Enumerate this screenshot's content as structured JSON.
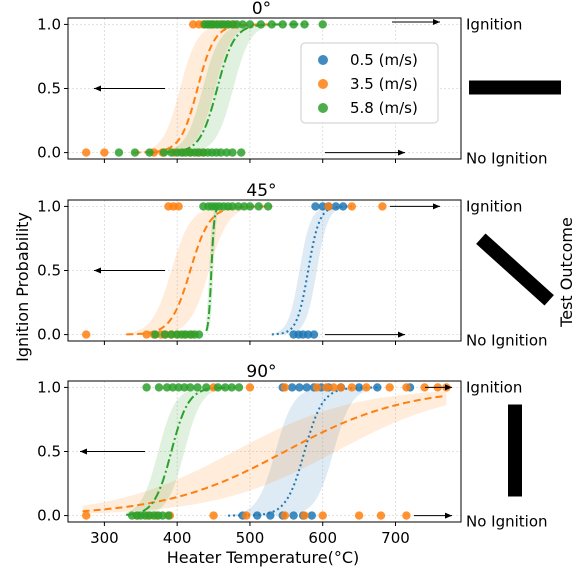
{
  "figure": {
    "ylabel": "Ignition Probability",
    "xlabel": "Heater Temperature(°C)",
    "right_label": "Test Outcome",
    "outcome_top": "Ignition",
    "outcome_bottom": "No Ignition"
  },
  "colors": {
    "s05": "#1f77b4",
    "s35": "#ff7f0e",
    "s58": "#2ca02c",
    "orientation_bar": "#000000"
  },
  "legend": {
    "placement": "upper right of top panel",
    "entries": [
      "0.5 (m/s)",
      "3.5 (m/s)",
      "5.8 (m/s)"
    ]
  },
  "chart_data": [
    {
      "type": "scatter",
      "title": "0°",
      "orientation_deg": 0,
      "xlim": [
        250,
        790
      ],
      "ylim": [
        -0.05,
        1.05
      ],
      "xticks": [
        300,
        400,
        500,
        600,
        700
      ],
      "yticks": [
        0.0,
        0.5,
        1.0
      ],
      "ytick_labels": [
        "0.0",
        "0.5",
        "1.0"
      ],
      "grid": true,
      "series": [
        {
          "name": "3.5 (m/s)",
          "color": "#ff7f0e",
          "line": "dashed",
          "fit": {
            "t0": 428,
            "k": 0.085
          },
          "band": {
            "x": [
              340,
              545
            ],
            "lo_shift": 24,
            "hi_shift": -24
          },
          "ignition_x": [
            422,
            430,
            436,
            443,
            448,
            455,
            462,
            470,
            478
          ],
          "no_ignition_x": [
            275,
            300,
            368,
            380,
            396,
            408,
            418,
            428,
            436
          ]
        },
        {
          "name": "5.8 (m/s)",
          "color": "#2ca02c",
          "line": "dashdot",
          "fit": {
            "t0": 455,
            "k": 0.085
          },
          "band": {
            "x": [
              360,
              580
            ],
            "lo_shift": 22,
            "hi_shift": -20
          },
          "ignition_x": [
            438,
            442,
            446,
            450,
            455,
            460,
            465,
            470,
            476,
            482,
            490,
            500,
            515,
            530,
            545,
            560,
            575,
            600
          ],
          "no_ignition_x": [
            320,
            342,
            362,
            382,
            392,
            400,
            406,
            412,
            418,
            424,
            430,
            436,
            442,
            448,
            454,
            460,
            468,
            476,
            488
          ]
        }
      ]
    },
    {
      "type": "scatter",
      "title": "45°",
      "orientation_deg": 45,
      "xlim": [
        250,
        790
      ],
      "ylim": [
        -0.05,
        1.05
      ],
      "xticks": [
        300,
        400,
        500,
        600,
        700
      ],
      "yticks": [
        0.0,
        0.5,
        1.0
      ],
      "ytick_labels": [
        "0.0",
        "0.5",
        "1.0"
      ],
      "grid": true,
      "series": [
        {
          "name": "0.5 (m/s)",
          "color": "#1f77b4",
          "line": "dotted",
          "fit": {
            "t0": 580,
            "k": 0.13
          },
          "band": {
            "x": [
              530,
              640
            ],
            "lo_shift": 12,
            "hi_shift": -12
          },
          "ignition_x": [
            590,
            600,
            608,
            618,
            628
          ],
          "no_ignition_x": [
            560,
            567,
            573,
            580,
            588
          ]
        },
        {
          "name": "3.5 (m/s)",
          "color": "#ff7f0e",
          "line": "dashed",
          "fit": {
            "t0": 418,
            "k": 0.075
          },
          "band": {
            "x": [
              330,
              530
            ],
            "lo_shift": 26,
            "hi_shift": -26
          },
          "ignition_x": [
            388,
            395,
            402,
            608,
            640,
            682
          ],
          "no_ignition_x": [
            275,
            358,
            368,
            378,
            384,
            392,
            400,
            410,
            420
          ]
        },
        {
          "name": "5.8 (m/s)",
          "color": "#2ca02c",
          "line": "dashdot",
          "fit": {
            "t0": 447,
            "k": 0.5
          },
          "band": {
            "x": [
              440,
              456
            ],
            "lo_shift": 3,
            "hi_shift": -3
          },
          "ignition_x": [
            436,
            443,
            448,
            453,
            458,
            464,
            470,
            476,
            484,
            492,
            500,
            512,
            525
          ],
          "no_ignition_x": [
            370,
            383,
            392,
            400,
            406,
            412,
            418,
            424,
            430
          ]
        }
      ]
    },
    {
      "type": "scatter",
      "title": "90°",
      "orientation_deg": 90,
      "xlim": [
        250,
        790
      ],
      "ylim": [
        -0.05,
        1.05
      ],
      "xticks": [
        300,
        400,
        500,
        600,
        700
      ],
      "yticks": [
        0.0,
        0.5,
        1.0
      ],
      "ytick_labels": [
        "0.0",
        "0.5",
        "1.0"
      ],
      "grid": true,
      "series": [
        {
          "name": "0.5 (m/s)",
          "color": "#1f77b4",
          "line": "dotted",
          "fit": {
            "t0": 575,
            "k": 0.08
          },
          "band": {
            "x": [
              470,
              680
            ],
            "lo_shift": 40,
            "hi_shift": -40
          },
          "ignition_x": [
            545,
            558,
            568,
            578,
            588,
            598,
            608,
            625,
            650,
            675,
            720
          ],
          "no_ignition_x": [
            490,
            510,
            528,
            545,
            560,
            573,
            585
          ]
        },
        {
          "name": "3.5 (m/s)",
          "color": "#ff7f0e",
          "line": "dashed",
          "fit": {
            "t0": 548,
            "k": 0.012
          },
          "band": {
            "x": [
              270,
              770
            ],
            "lo_shift": 70,
            "hi_shift": -70
          },
          "ignition_x": [
            450,
            500,
            548,
            592,
            605,
            615,
            625,
            640,
            660,
            692,
            715,
            740,
            758,
            770
          ],
          "no_ignition_x": [
            275,
            345,
            360,
            372,
            390,
            450,
            495,
            548,
            575,
            600,
            650,
            680,
            715
          ]
        },
        {
          "name": "5.8 (m/s)",
          "color": "#2ca02c",
          "line": "dashdot",
          "fit": {
            "t0": 392,
            "k": 0.085
          },
          "band": {
            "x": [
              330,
              480
            ],
            "lo_shift": 18,
            "hi_shift": -18
          },
          "ignition_x": [
            358,
            375,
            386,
            394,
            402,
            410,
            418,
            428,
            440,
            456,
            466,
            475,
            485
          ],
          "no_ignition_x": [
            338,
            345,
            350,
            356,
            362,
            368,
            374,
            380,
            388
          ]
        }
      ]
    }
  ]
}
